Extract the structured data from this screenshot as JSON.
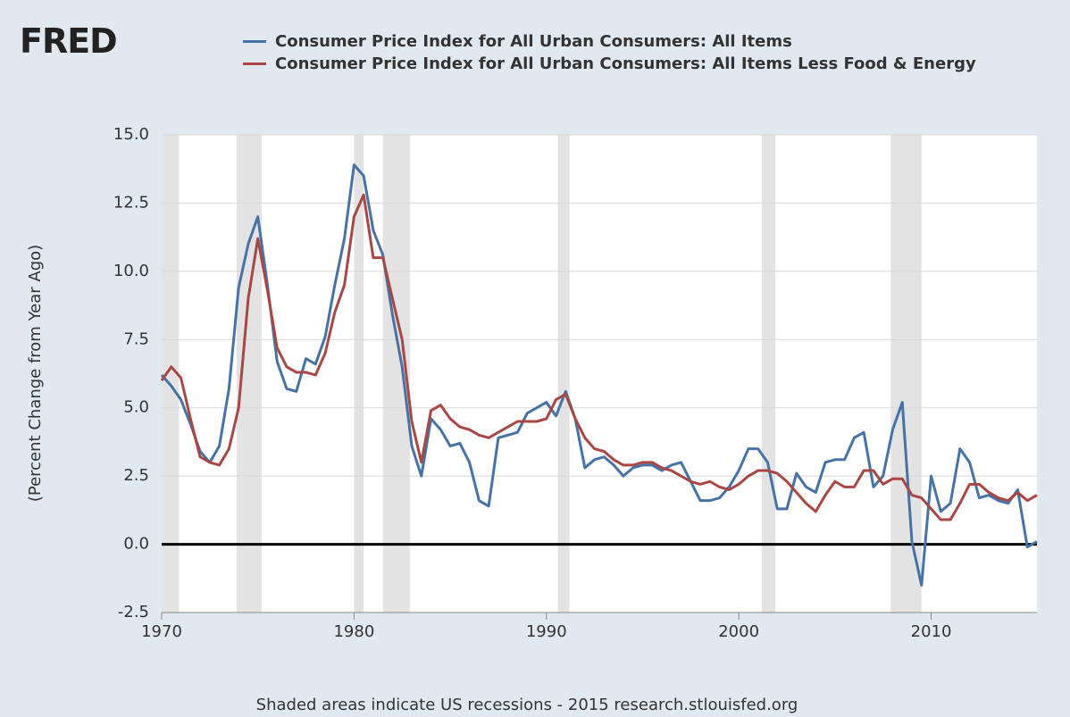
{
  "logo": "FRED",
  "chart_data": {
    "type": "line",
    "y_label": "(Percent Change from Year Ago)",
    "note": "Shaded areas indicate US recessions - 2015 research.stlouisfed.org",
    "x": [
      1970,
      1970.5,
      1971,
      1971.5,
      1972,
      1972.5,
      1973,
      1973.5,
      1974,
      1974.5,
      1975,
      1975.5,
      1976,
      1976.5,
      1977,
      1977.5,
      1978,
      1978.5,
      1979,
      1979.5,
      1980,
      1980.5,
      1981,
      1981.5,
      1982,
      1982.5,
      1983,
      1983.5,
      1984,
      1984.5,
      1985,
      1985.5,
      1986,
      1986.5,
      1987,
      1987.5,
      1988,
      1988.5,
      1989,
      1989.5,
      1990,
      1990.5,
      1991,
      1991.5,
      1992,
      1992.5,
      1993,
      1993.5,
      1994,
      1994.5,
      1995,
      1995.5,
      1996,
      1996.5,
      1997,
      1997.5,
      1998,
      1998.5,
      1999,
      1999.5,
      2000,
      2000.5,
      2001,
      2001.5,
      2002,
      2002.5,
      2003,
      2003.5,
      2004,
      2004.5,
      2005,
      2005.5,
      2006,
      2006.5,
      2007,
      2007.5,
      2008,
      2008.5,
      2009,
      2009.5,
      2010,
      2010.5,
      2011,
      2011.5,
      2012,
      2012.5,
      2013,
      2013.5,
      2014,
      2014.5,
      2015,
      2015.5
    ],
    "series": [
      {
        "name": "Consumer Price Index for All Urban Consumers: All Items",
        "color": "#4572a7",
        "values": [
          6.2,
          5.8,
          5.3,
          4.4,
          3.4,
          3.0,
          3.6,
          5.7,
          9.4,
          11.0,
          12.0,
          9.5,
          6.7,
          5.7,
          5.6,
          6.8,
          6.6,
          7.6,
          9.5,
          11.2,
          13.9,
          13.5,
          11.5,
          10.6,
          8.4,
          6.5,
          3.6,
          2.5,
          4.6,
          4.2,
          3.6,
          3.7,
          3.0,
          1.6,
          1.4,
          3.9,
          4.0,
          4.1,
          4.8,
          5.0,
          5.2,
          4.7,
          5.6,
          4.6,
          2.8,
          3.1,
          3.2,
          2.9,
          2.5,
          2.8,
          2.9,
          2.9,
          2.7,
          2.9,
          3.0,
          2.3,
          1.6,
          1.6,
          1.7,
          2.1,
          2.7,
          3.5,
          3.5,
          3.0,
          1.3,
          1.3,
          2.6,
          2.1,
          1.9,
          3.0,
          3.1,
          3.1,
          3.9,
          4.1,
          2.1,
          2.5,
          4.2,
          5.2,
          0.1,
          -1.5,
          2.5,
          1.2,
          1.5,
          3.5,
          3.0,
          1.7,
          1.8,
          1.6,
          1.5,
          2.0,
          -0.1,
          0.1
        ]
      },
      {
        "name": "Consumer Price Index for All Urban Consumers: All Items Less Food & Energy",
        "color": "#aa4643",
        "values": [
          6.0,
          6.5,
          6.1,
          4.6,
          3.2,
          3.0,
          2.9,
          3.5,
          5.0,
          9.0,
          11.2,
          9.3,
          7.2,
          6.5,
          6.3,
          6.3,
          6.2,
          7.0,
          8.5,
          9.5,
          12.0,
          12.8,
          10.5,
          10.5,
          9.0,
          7.5,
          4.5,
          3.0,
          4.9,
          5.1,
          4.6,
          4.3,
          4.2,
          4.0,
          3.9,
          4.1,
          4.3,
          4.5,
          4.5,
          4.5,
          4.6,
          5.3,
          5.5,
          4.6,
          3.9,
          3.5,
          3.4,
          3.1,
          2.9,
          2.9,
          3.0,
          3.0,
          2.8,
          2.7,
          2.5,
          2.3,
          2.2,
          2.3,
          2.1,
          2.0,
          2.2,
          2.5,
          2.7,
          2.7,
          2.6,
          2.3,
          1.9,
          1.5,
          1.2,
          1.8,
          2.3,
          2.1,
          2.1,
          2.7,
          2.7,
          2.2,
          2.4,
          2.4,
          1.8,
          1.7,
          1.3,
          0.9,
          0.9,
          1.5,
          2.2,
          2.2,
          1.9,
          1.7,
          1.6,
          1.9,
          1.6,
          1.8
        ]
      }
    ],
    "recessions": [
      [
        1970,
        1970.9
      ],
      [
        1973.9,
        1975.2
      ],
      [
        1980,
        1980.5
      ],
      [
        1981.5,
        1982.9
      ],
      [
        1990.6,
        1991.2
      ],
      [
        2001.2,
        2001.9
      ],
      [
        2007.9,
        2009.5
      ]
    ],
    "xlim": [
      1970,
      2015.5
    ],
    "xticks": [
      1970,
      1980,
      1990,
      2000,
      2010
    ],
    "ylim": [
      -2.5,
      15
    ],
    "yticks": [
      -2.5,
      {
        "value": 0,
        "label": "0.0"
      },
      2.5,
      {
        "value": 5,
        "label": "5.0"
      },
      7.5,
      {
        "value": 10,
        "label": "10.0"
      },
      12.5,
      {
        "value": 15,
        "label": "15.0"
      }
    ],
    "grid": true
  }
}
